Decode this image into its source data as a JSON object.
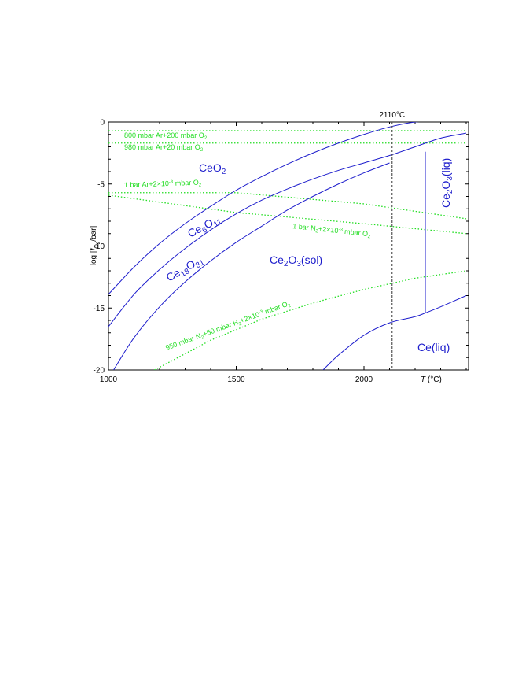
{
  "chart_data": {
    "type": "line",
    "xlabel": "T (°C)",
    "ylabel": "log [f O2 /bar]",
    "xlim": [
      1000,
      1410
    ],
    "ylim": [
      -20,
      0
    ],
    "xticks": [
      1000,
      1500,
      2000
    ],
    "yticks": [
      0,
      -5,
      -10,
      -15,
      -20
    ],
    "grid": false,
    "marker_line": {
      "x": 2110,
      "label": "2110°C"
    },
    "boundaries": [
      {
        "name": "CeO2 / Ce6O11",
        "x": [
          1000,
          1100,
          1200,
          1300,
          1400,
          1500,
          1600,
          1700,
          1800,
          1900,
          2000,
          2100,
          2200,
          2300
        ],
        "y": [
          -13.9,
          -11.7,
          -9.8,
          -8.2,
          -6.8,
          -5.5,
          -4.4,
          -3.4,
          -2.5,
          -1.7,
          -1.0,
          -0.4,
          0.0,
          0.1
        ]
      },
      {
        "name": "Ce6O11 / Ce18O31",
        "x": [
          1000,
          1100,
          1200,
          1300,
          1400,
          1500,
          1600,
          1700,
          1800,
          1900,
          2000,
          2100,
          2200,
          2300,
          2400
        ],
        "y": [
          -16.5,
          -13.9,
          -11.9,
          -10.2,
          -8.7,
          -7.4,
          -6.3,
          -5.4,
          -4.6,
          -3.9,
          -3.3,
          -2.7,
          -2.0,
          -1.3,
          -0.9
        ]
      },
      {
        "name": "Ce18O31 / Ce2O3(sol)",
        "x": [
          1020,
          1100,
          1200,
          1300,
          1400,
          1500,
          1600,
          1700,
          1800,
          1900,
          2000,
          2100
        ],
        "y": [
          -20.0,
          -17.4,
          -14.9,
          -12.9,
          -11.2,
          -9.7,
          -8.4,
          -7.1,
          -6.0,
          -5.0,
          -4.1,
          -3.3
        ]
      },
      {
        "name": "Ce2O3 melting",
        "x": [
          2240,
          2240
        ],
        "y": [
          -2.4,
          -15.4
        ]
      },
      {
        "name": "Ce2O3(liq) / Ce(liq)",
        "x": [
          1840,
          1900,
          2000,
          2100,
          2200,
          2240,
          2300,
          2400
        ],
        "y": [
          -20.0,
          -18.8,
          -17.2,
          -16.2,
          -15.7,
          -15.4,
          -14.9,
          -14.0
        ]
      }
    ],
    "gas_lines": [
      {
        "label": "800 mbar Ar+200 mbar O2",
        "x": [
          1000,
          2400
        ],
        "y": [
          -0.7,
          -0.7
        ]
      },
      {
        "label": "980 mbar Ar+20 mbar O2",
        "x": [
          1000,
          2400
        ],
        "y": [
          -1.7,
          -1.7
        ]
      },
      {
        "label": "1 bar Ar+2×10-3 mbar O2",
        "x": [
          1000,
          1500,
          2000,
          2400
        ],
        "y": [
          -5.7,
          -5.7,
          -6.6,
          -7.8
        ]
      },
      {
        "label": "1 bar N2+2×10-3 mbar O2",
        "x": [
          1000,
          1500,
          2000,
          2400
        ],
        "y": [
          -5.9,
          -7.3,
          -8.2,
          -9.0
        ]
      },
      {
        "label": "950 mbar N2+50 mbar H2+2×10-3 mbar O2",
        "x": [
          1180,
          1400,
          1600,
          1800,
          2000,
          2200,
          2400
        ],
        "y": [
          -20.0,
          -17.6,
          -15.9,
          -14.6,
          -13.5,
          -12.6,
          -12.0
        ]
      }
    ],
    "regions": [
      "CeO2",
      "Ce6O11",
      "Ce18O31",
      "Ce2O3(sol)",
      "Ce2O3(liq)",
      "Ce(liq)"
    ],
    "colors": {
      "boundary": "#1d1dcc",
      "gas": "#22dd22",
      "marker": "#555555"
    }
  }
}
